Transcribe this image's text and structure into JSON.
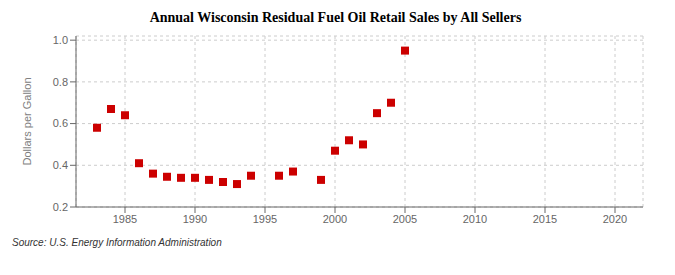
{
  "chart_data": {
    "type": "scatter",
    "title": "Annual Wisconsin Residual Fuel Oil Retail Sales by All Sellers",
    "y_label": "Dollars per Gallon",
    "annotations": [
      "Source: U.S. Energy Information Administration"
    ],
    "x": [
      1983,
      1984,
      1985,
      1986,
      1987,
      1988,
      1989,
      1990,
      1991,
      1992,
      1993,
      1994,
      1996,
      1997,
      1999,
      2000,
      2001,
      2002,
      2003,
      2004,
      2005
    ],
    "values": [
      0.58,
      0.67,
      0.64,
      0.41,
      0.36,
      0.345,
      0.34,
      0.34,
      0.33,
      0.32,
      0.31,
      0.35,
      0.35,
      0.37,
      0.33,
      0.47,
      0.52,
      0.5,
      0.65,
      0.7,
      0.95
    ],
    "color": "#cc0000",
    "marker": "square",
    "xlim": [
      1981.5,
      2022
    ],
    "xticks": [
      1985,
      1990,
      1995,
      2000,
      2005,
      2010,
      2015,
      2020
    ],
    "ylim": [
      0.2,
      1.02
    ],
    "yticks": [
      0.2,
      0.4,
      0.6,
      0.8,
      {
        "value": 1.0,
        "label": "1.0"
      }
    ],
    "grid": true
  }
}
